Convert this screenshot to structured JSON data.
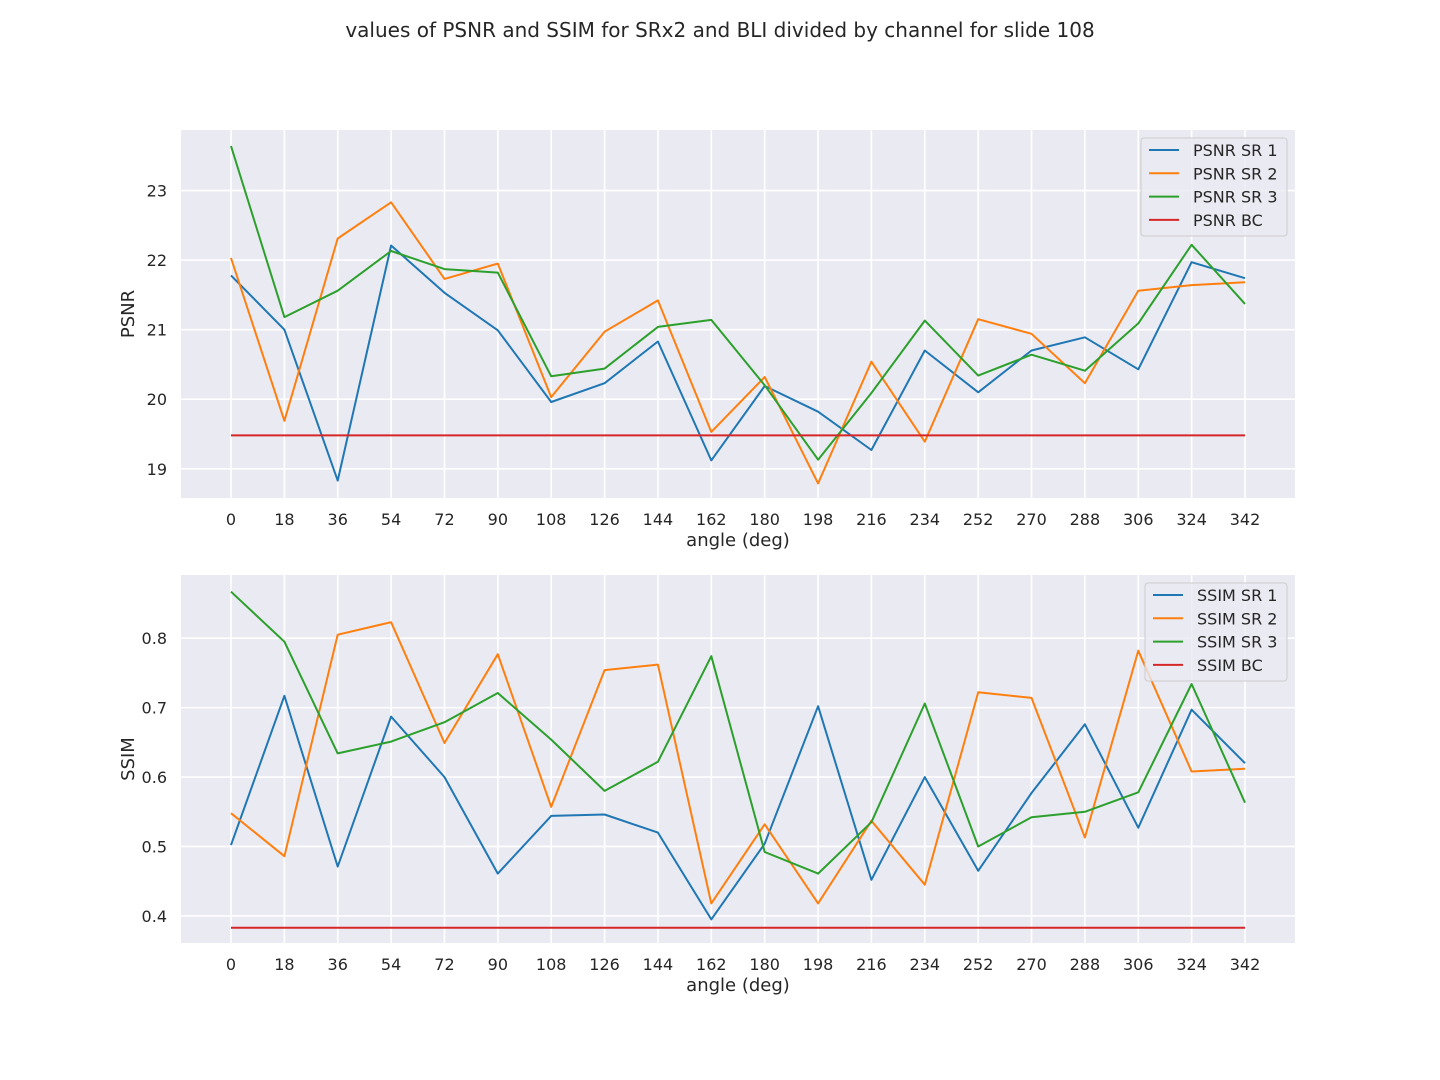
{
  "figure": {
    "title": "values of PSNR and SSIM for SRx2 and BLI divided by channel for slide 108"
  },
  "chart_data": [
    {
      "type": "line",
      "xlabel": "angle (deg)",
      "ylabel": "PSNR",
      "x": [
        0,
        18,
        36,
        54,
        72,
        90,
        108,
        126,
        144,
        162,
        180,
        198,
        216,
        234,
        252,
        270,
        288,
        306,
        324,
        342
      ],
      "yticks": [
        19,
        20,
        21,
        22,
        23
      ],
      "ylim": [
        18.58,
        23.87
      ],
      "grid": true,
      "legend_position": "top-right",
      "series": [
        {
          "name": "PSNR SR 1",
          "color": "#1f77b4",
          "values": [
            21.78,
            21.0,
            18.83,
            22.21,
            21.53,
            20.99,
            19.96,
            20.23,
            20.83,
            19.12,
            20.19,
            19.82,
            19.27,
            20.7,
            20.1,
            20.7,
            20.89,
            20.43,
            21.97,
            21.74
          ]
        },
        {
          "name": "PSNR SR 2",
          "color": "#ff7f0e",
          "values": [
            22.03,
            19.69,
            22.31,
            22.83,
            21.73,
            21.95,
            20.03,
            20.97,
            21.42,
            19.53,
            20.32,
            18.79,
            20.54,
            19.39,
            21.15,
            20.94,
            20.23,
            21.56,
            21.64,
            21.68
          ]
        },
        {
          "name": "PSNR SR 3",
          "color": "#2ca02c",
          "values": [
            23.64,
            21.18,
            21.56,
            22.13,
            21.87,
            21.82,
            20.33,
            20.44,
            21.04,
            21.14,
            20.2,
            19.13,
            20.09,
            21.13,
            20.34,
            20.64,
            20.41,
            21.09,
            22.22,
            21.37
          ]
        },
        {
          "name": "PSNR BC",
          "color": "#d62728",
          "values": [
            19.48,
            19.48,
            19.48,
            19.48,
            19.48,
            19.48,
            19.48,
            19.48,
            19.48,
            19.48,
            19.48,
            19.48,
            19.48,
            19.48,
            19.48,
            19.48,
            19.48,
            19.48,
            19.48,
            19.48
          ]
        }
      ]
    },
    {
      "type": "line",
      "xlabel": "angle (deg)",
      "ylabel": "SSIM",
      "x": [
        0,
        18,
        36,
        54,
        72,
        90,
        108,
        126,
        144,
        162,
        180,
        198,
        216,
        234,
        252,
        270,
        288,
        306,
        324,
        342
      ],
      "yticks": [
        0.4,
        0.5,
        0.6,
        0.7,
        0.8
      ],
      "ylim": [
        0.361,
        0.891
      ],
      "grid": true,
      "legend_position": "top-right",
      "series": [
        {
          "name": "SSIM SR 1",
          "color": "#1f77b4",
          "values": [
            0.502,
            0.717,
            0.471,
            0.687,
            0.6,
            0.461,
            0.544,
            0.546,
            0.52,
            0.395,
            0.504,
            0.702,
            0.452,
            0.6,
            0.465,
            0.577,
            0.676,
            0.527,
            0.697,
            0.62
          ]
        },
        {
          "name": "SSIM SR 2",
          "color": "#ff7f0e",
          "values": [
            0.548,
            0.486,
            0.805,
            0.823,
            0.649,
            0.777,
            0.557,
            0.754,
            0.762,
            0.418,
            0.532,
            0.418,
            0.537,
            0.445,
            0.722,
            0.714,
            0.513,
            0.782,
            0.608,
            0.612
          ]
        },
        {
          "name": "SSIM SR 3",
          "color": "#2ca02c",
          "values": [
            0.867,
            0.795,
            0.634,
            0.651,
            0.679,
            0.721,
            0.654,
            0.58,
            0.622,
            0.774,
            0.492,
            0.461,
            0.535,
            0.706,
            0.5,
            0.542,
            0.55,
            0.578,
            0.734,
            0.563
          ]
        },
        {
          "name": "SSIM BC",
          "color": "#d62728",
          "values": [
            0.383,
            0.383,
            0.383,
            0.383,
            0.383,
            0.383,
            0.383,
            0.383,
            0.383,
            0.383,
            0.383,
            0.383,
            0.383,
            0.383,
            0.383,
            0.383,
            0.383,
            0.383,
            0.383,
            0.383
          ]
        }
      ]
    }
  ]
}
